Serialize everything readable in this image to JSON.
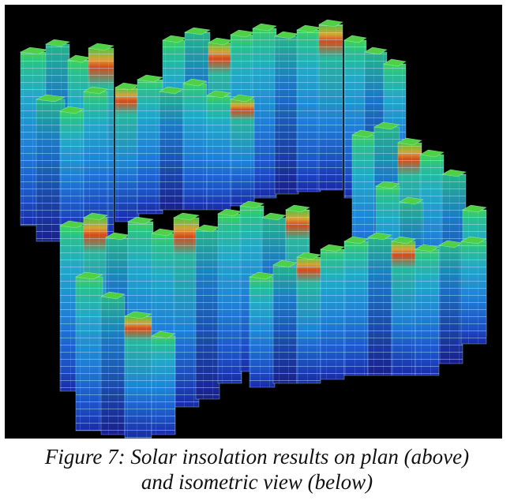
{
  "figure": {
    "icon": "isometric-building-render",
    "background": "#000000",
    "palette": [
      "#1a1aa8",
      "#1f4fd0",
      "#1f8ad8",
      "#23b6c8",
      "#2bc48a",
      "#4ec43c",
      "#c9a23a",
      "#d84a1c"
    ]
  },
  "caption": {
    "line1": "Figure 7: Solar insolation results on plan (above)",
    "line2": "and isometric view (below)"
  }
}
